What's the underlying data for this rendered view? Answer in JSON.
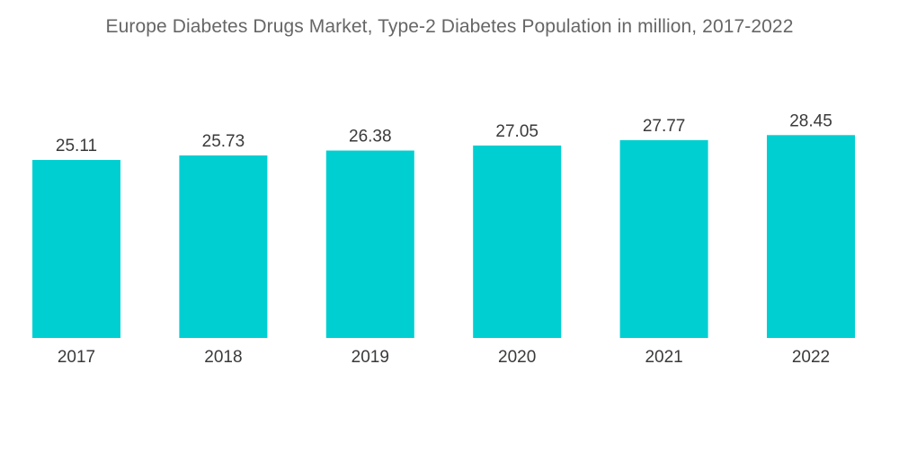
{
  "chart_data": {
    "type": "bar",
    "title": "Europe Diabetes Drugs Market, Type-2 Diabetes Population in million, 2017-2022",
    "categories": [
      "2017",
      "2018",
      "2019",
      "2020",
      "2021",
      "2022"
    ],
    "values": [
      25.11,
      25.73,
      26.38,
      27.05,
      27.77,
      28.45
    ],
    "value_labels": [
      "25.11",
      "25.73",
      "26.38",
      "27.05",
      "27.77",
      "28.45"
    ],
    "xlabel": "",
    "ylabel": "",
    "bar_color": "#00cfd1",
    "grid": false,
    "legend": "none"
  }
}
